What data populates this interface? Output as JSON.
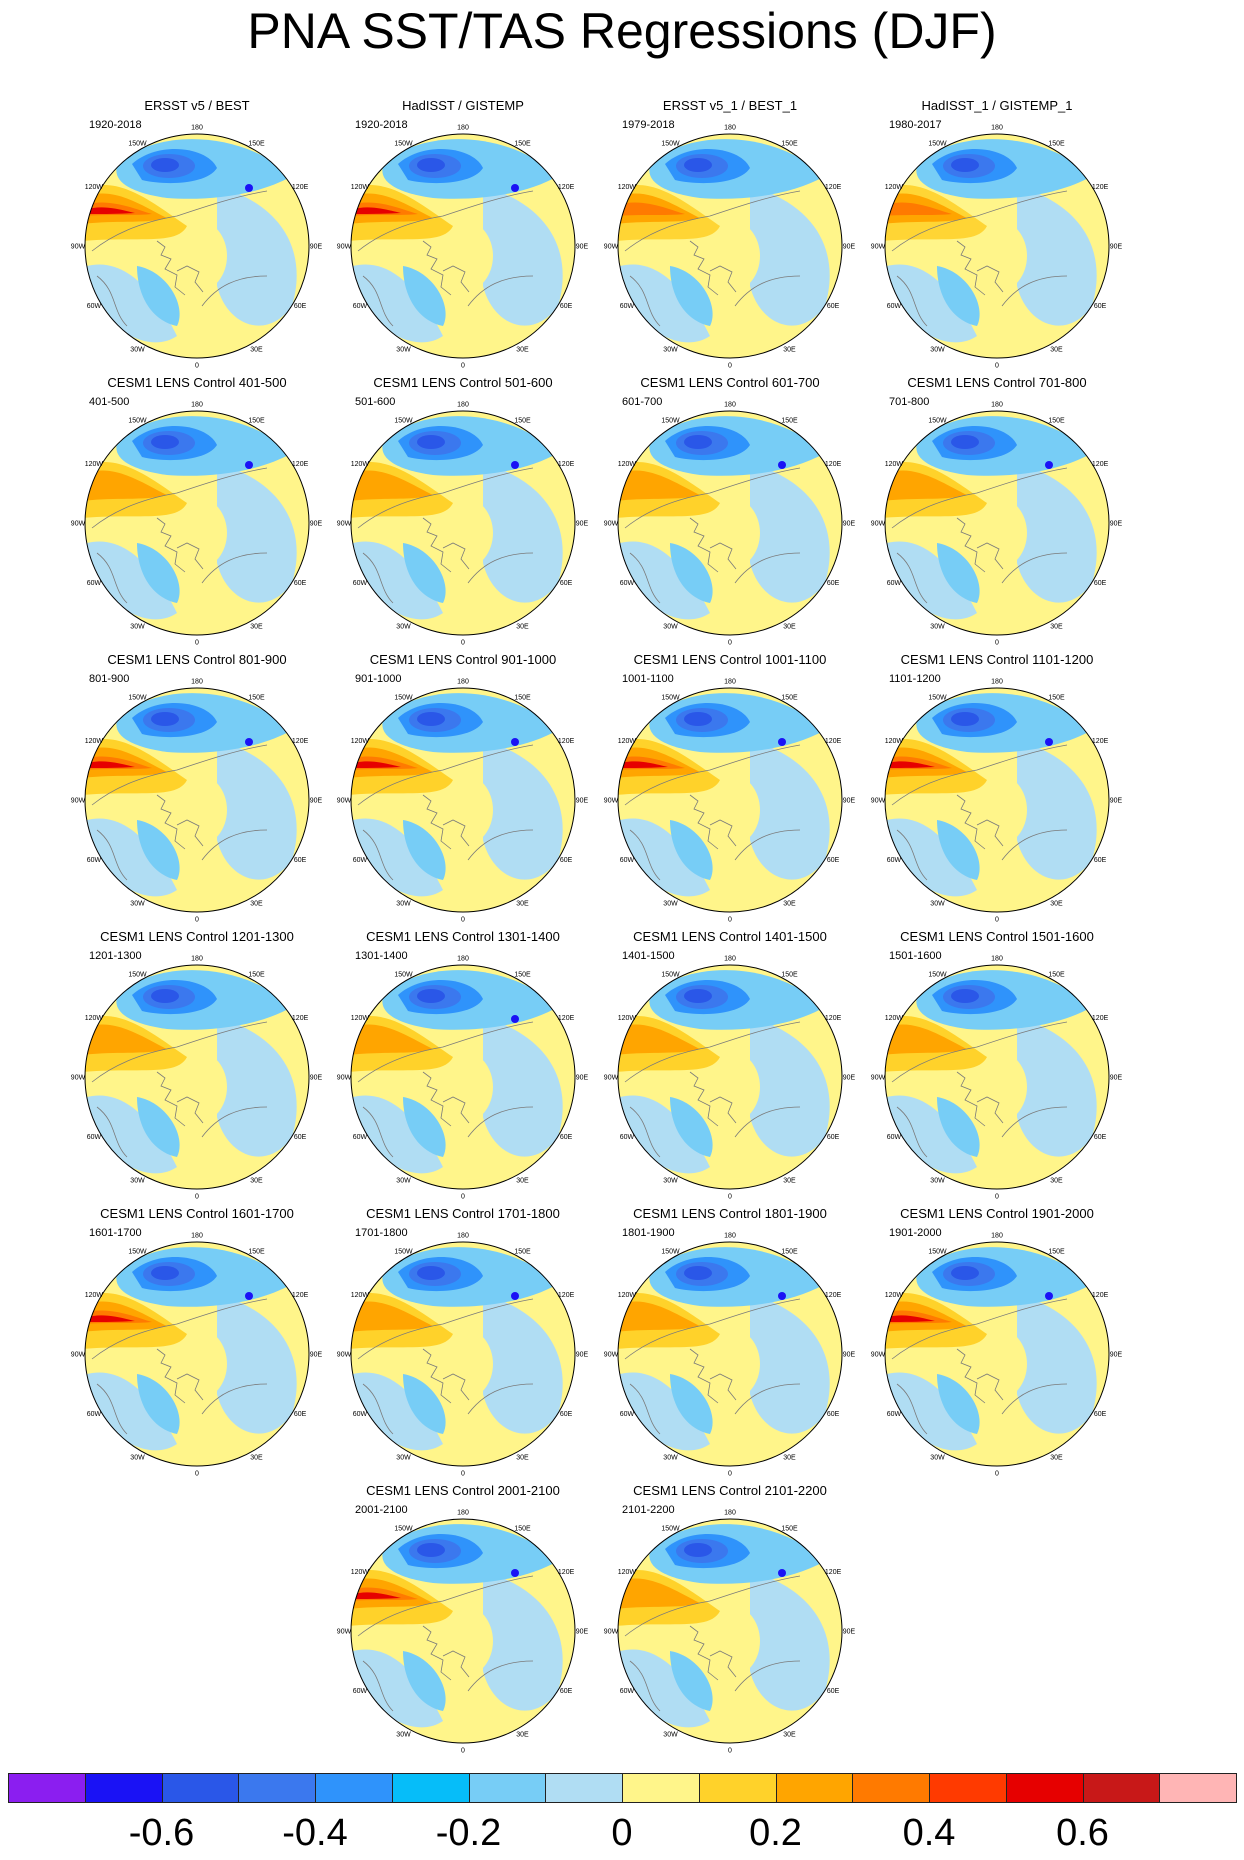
{
  "title": "PNA SST/TAS Regressions (DJF)",
  "lon_labels": [
    "180",
    "150E",
    "120E",
    "90E",
    "60E",
    "30E",
    "0",
    "30W",
    "60W",
    "90W",
    "120W",
    "150W"
  ],
  "panels": [
    {
      "title": "ERSST v5 / BEST",
      "period": "1920-2018",
      "variant": 0
    },
    {
      "title": "HadISST / GISTEMP",
      "period": "1920-2018",
      "variant": 0
    },
    {
      "title": "ERSST v5_1 / BEST_1",
      "period": "1979-2018",
      "variant": 2
    },
    {
      "title": "HadISST_1 / GISTEMP_1",
      "period": "1980-2017",
      "variant": 2
    },
    {
      "title": "CESM1 LENS Control 401-500",
      "period": "401-500",
      "variant": 1
    },
    {
      "title": "CESM1 LENS Control 501-600",
      "period": "501-600",
      "variant": 1
    },
    {
      "title": "CESM1 LENS Control 601-700",
      "period": "601-700",
      "variant": 1
    },
    {
      "title": "CESM1 LENS Control 701-800",
      "period": "701-800",
      "variant": 1
    },
    {
      "title": "CESM1 LENS Control 801-900",
      "period": "801-900",
      "variant": 0
    },
    {
      "title": "CESM1 LENS Control 901-1000",
      "period": "901-1000",
      "variant": 0
    },
    {
      "title": "CESM1 LENS Control 1001-1100",
      "period": "1001-1100",
      "variant": 0
    },
    {
      "title": "CESM1 LENS Control 1101-1200",
      "period": "1101-1200",
      "variant": 0
    },
    {
      "title": "CESM1 LENS Control 1201-1300",
      "period": "1201-1300",
      "variant": 3
    },
    {
      "title": "CESM1 LENS Control 1301-1400",
      "period": "1301-1400",
      "variant": 1
    },
    {
      "title": "CESM1 LENS Control 1401-1500",
      "period": "1401-1500",
      "variant": 3
    },
    {
      "title": "CESM1 LENS Control 1501-1600",
      "period": "1501-1600",
      "variant": 3
    },
    {
      "title": "CESM1 LENS Control 1601-1700",
      "period": "1601-1700",
      "variant": 0
    },
    {
      "title": "CESM1 LENS Control 1701-1800",
      "period": "1701-1800",
      "variant": 1
    },
    {
      "title": "CESM1 LENS Control 1801-1900",
      "period": "1801-1900",
      "variant": 1
    },
    {
      "title": "CESM1 LENS Control 1901-2000",
      "period": "1901-2000",
      "variant": 0
    },
    {
      "title": "CESM1 LENS Control 2001-2100",
      "period": "2001-2100",
      "variant": 0
    },
    {
      "title": "CESM1 LENS Control 2101-2200",
      "period": "2101-2200",
      "variant": 1
    }
  ],
  "colorbar": {
    "colors": [
      "#8b1ef0",
      "#1a12f5",
      "#2a57e8",
      "#3b78ee",
      "#2f93fb",
      "#06bdf9",
      "#77cdf6",
      "#b0ddf3",
      "#fff58a",
      "#ffd22a",
      "#ffa500",
      "#ff7a00",
      "#ff3a00",
      "#e60000",
      "#c81818",
      "#ffb5b5"
    ],
    "tick_labels": [
      "-0.6",
      "-0.4",
      "-0.2",
      "0",
      "0.2",
      "0.4",
      "0.6"
    ]
  }
}
